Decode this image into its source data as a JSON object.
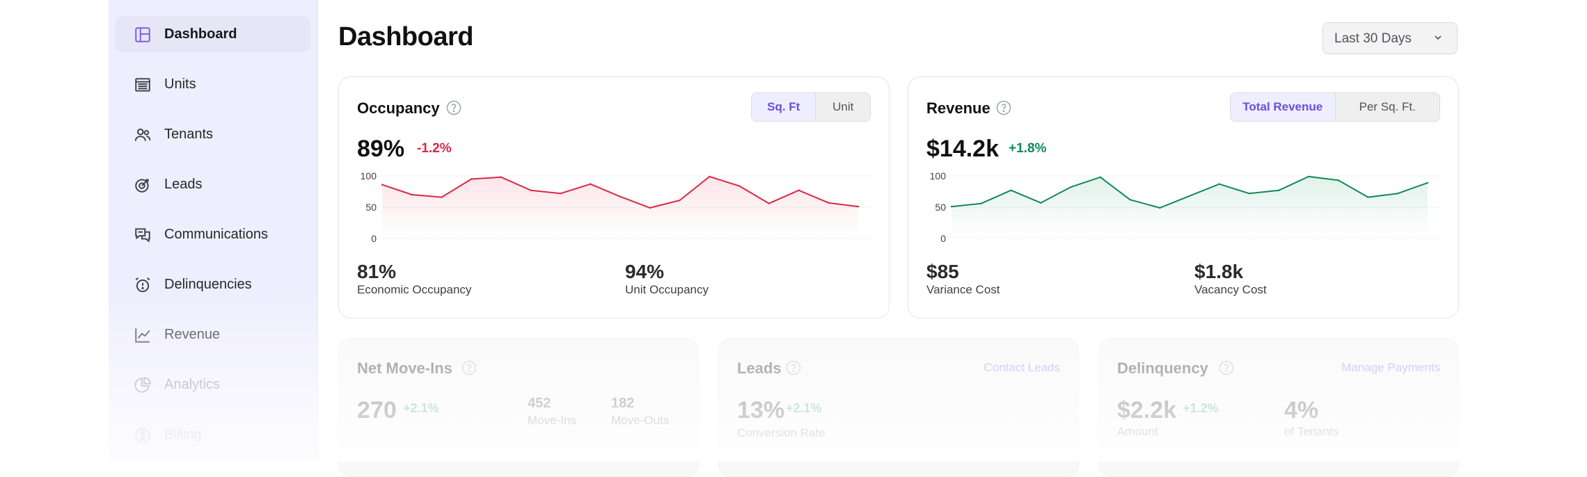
{
  "sidebar": {
    "items": [
      {
        "label": "Dashboard",
        "icon": "layout-icon",
        "active": true
      },
      {
        "label": "Units",
        "icon": "units-icon"
      },
      {
        "label": "Tenants",
        "icon": "users-icon"
      },
      {
        "label": "Leads",
        "icon": "target-icon"
      },
      {
        "label": "Communications",
        "icon": "messages-icon"
      },
      {
        "label": "Delinquencies",
        "icon": "alarm-icon"
      },
      {
        "label": "Revenue",
        "icon": "trend-icon"
      },
      {
        "label": "Analytics",
        "icon": "pie-icon"
      },
      {
        "label": "Billing",
        "icon": "dollar-icon"
      }
    ]
  },
  "header": {
    "title": "Dashboard",
    "range_label": "Last 30 Days"
  },
  "occupancy": {
    "title": "Occupancy",
    "toggle": [
      "Sq. Ft",
      "Unit"
    ],
    "value": "89%",
    "delta": "-1.2%",
    "stats": [
      {
        "value": "81%",
        "label": "Economic Occupancy"
      },
      {
        "value": "94%",
        "label": "Unit Occupancy"
      }
    ],
    "color": "#dc2646"
  },
  "revenue": {
    "title": "Revenue",
    "toggle": [
      "Total Revenue",
      "Per Sq. Ft."
    ],
    "value": "$14.2k",
    "delta": "+1.8%",
    "stats": [
      {
        "value": "$85",
        "label": "Variance Cost"
      },
      {
        "value": "$1.8k",
        "label": "Vacancy Cost"
      }
    ],
    "color": "#0f8a55"
  },
  "net_move_ins": {
    "title": "Net Move-Ins",
    "value": "270",
    "delta": "+2.1%",
    "stats": [
      {
        "value": "452",
        "label": "Move-Ins"
      },
      {
        "value": "182",
        "label": "Move-Outs"
      }
    ]
  },
  "leads": {
    "title": "Leads",
    "link": "Contact Leads",
    "value": "13%",
    "delta": "+2.1%",
    "label": "Conversion Rate"
  },
  "delinquency": {
    "title": "Delinquency",
    "link": "Manage Payments",
    "value": "$2.2k",
    "delta": "+1.2%",
    "label": "Amount",
    "stat_value": "4%",
    "stat_label": "of Tenants"
  },
  "chart_data": [
    {
      "type": "area",
      "series": [
        {
          "values": [
            86,
            70,
            66,
            95,
            98,
            77,
            72,
            87,
            67,
            49,
            61,
            99,
            84,
            56,
            77,
            57,
            51
          ]
        }
      ],
      "yticks": [
        "100",
        "50",
        "0"
      ],
      "ylim": [
        0,
        100
      ],
      "grid": true
    },
    {
      "type": "area",
      "series": [
        {
          "values": [
            51,
            56,
            77,
            57,
            82,
            98,
            62,
            49,
            68,
            87,
            72,
            77,
            99,
            93,
            66,
            72,
            89
          ]
        }
      ],
      "yticks": [
        "100",
        "50",
        "0"
      ],
      "ylim": [
        0,
        100
      ],
      "grid": true
    }
  ]
}
